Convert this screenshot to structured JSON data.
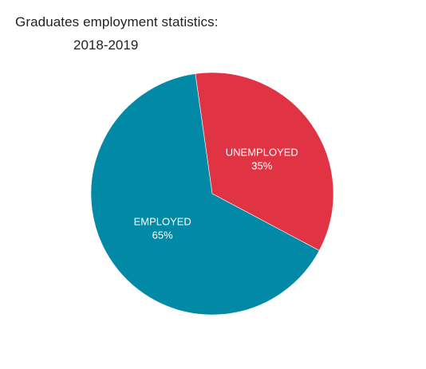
{
  "chart_data": {
    "type": "pie",
    "title": "Graduates employment statistics:",
    "subtitle": "2018-2019",
    "categories": [
      "UNEMPLOYED",
      "EMPLOYED"
    ],
    "values": [
      35,
      65
    ],
    "value_labels": [
      "35%",
      "65%"
    ],
    "colors": [
      "#e03444",
      "#0289a5"
    ],
    "start_angle_deg": -8,
    "legend": "none"
  }
}
